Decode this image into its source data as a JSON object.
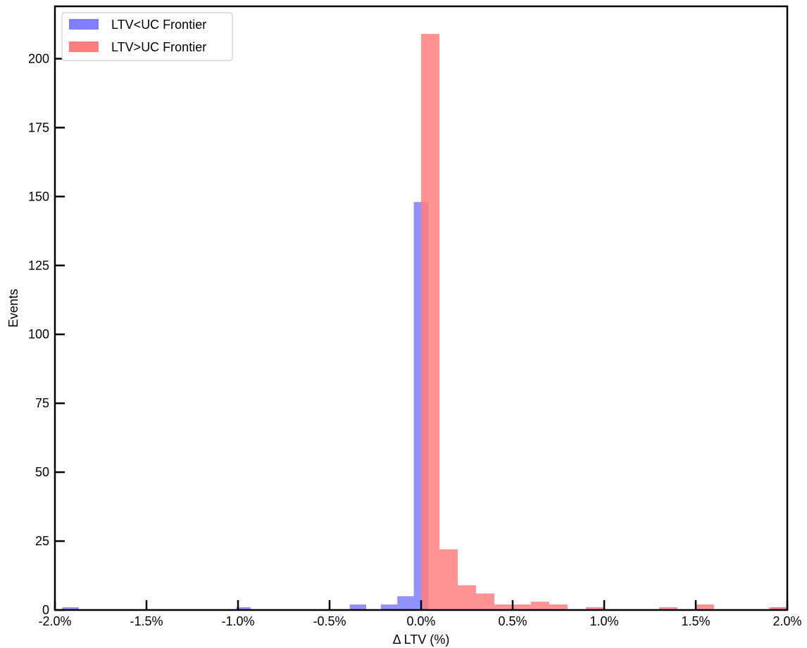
{
  "chart_data": {
    "type": "bar",
    "subtype": "overlapping-histogram",
    "title": "",
    "xlabel": "Δ LTV (%)",
    "ylabel": "Events",
    "xlim": [
      -0.02,
      0.02
    ],
    "ylim": [
      0,
      219
    ],
    "x_ticks": [
      {
        "value": -0.02,
        "label": "-2.0%"
      },
      {
        "value": -0.015,
        "label": "-1.5%"
      },
      {
        "value": -0.01,
        "label": "-1.0%"
      },
      {
        "value": -0.005,
        "label": "-0.5%"
      },
      {
        "value": 0.0,
        "label": "0.0%"
      },
      {
        "value": 0.005,
        "label": "0.5%"
      },
      {
        "value": 0.01,
        "label": "1.0%"
      },
      {
        "value": 0.015,
        "label": "1.5%"
      },
      {
        "value": 0.02,
        "label": "2.0%"
      }
    ],
    "y_ticks": [
      {
        "value": 0,
        "label": "0"
      },
      {
        "value": 25,
        "label": "25"
      },
      {
        "value": 50,
        "label": "50"
      },
      {
        "value": 75,
        "label": "75"
      },
      {
        "value": 100,
        "label": "100"
      },
      {
        "value": 125,
        "label": "125"
      },
      {
        "value": 150,
        "label": "150"
      },
      {
        "value": 175,
        "label": "175"
      },
      {
        "value": 200,
        "label": "200"
      }
    ],
    "grid": false,
    "legend_position": "top-left",
    "series": [
      {
        "name": "LTV<UC Frontier",
        "color": "#7f7fff",
        "bins": [
          {
            "x0": -0.0196,
            "x1": -0.0187,
            "count": 1
          },
          {
            "x0": -0.0101,
            "x1": -0.0093,
            "count": 1
          },
          {
            "x0": -0.0039,
            "x1": -0.003,
            "count": 2
          },
          {
            "x0": -0.0022,
            "x1": -0.0013,
            "count": 2
          },
          {
            "x0": -0.0013,
            "x1": -0.0004,
            "count": 5
          },
          {
            "x0": -0.0004,
            "x1": 0.0004,
            "count": 148
          },
          {
            "x0": 0.0192,
            "x1": 0.02,
            "count": 1
          }
        ]
      },
      {
        "name": "LTV>UC Frontier",
        "color": "#ff7f7f",
        "bins": [
          {
            "x0": 0.0,
            "x1": 0.001,
            "count": 209
          },
          {
            "x0": 0.001,
            "x1": 0.002,
            "count": 22
          },
          {
            "x0": 0.002,
            "x1": 0.003,
            "count": 9
          },
          {
            "x0": 0.003,
            "x1": 0.004,
            "count": 6
          },
          {
            "x0": 0.004,
            "x1": 0.005,
            "count": 2
          },
          {
            "x0": 0.005,
            "x1": 0.006,
            "count": 2
          },
          {
            "x0": 0.006,
            "x1": 0.007,
            "count": 3
          },
          {
            "x0": 0.007,
            "x1": 0.008,
            "count": 2
          },
          {
            "x0": 0.009,
            "x1": 0.01,
            "count": 1
          },
          {
            "x0": 0.013,
            "x1": 0.014,
            "count": 1
          },
          {
            "x0": 0.015,
            "x1": 0.016,
            "count": 2
          },
          {
            "x0": 0.019,
            "x1": 0.02,
            "count": 1
          }
        ]
      }
    ]
  }
}
